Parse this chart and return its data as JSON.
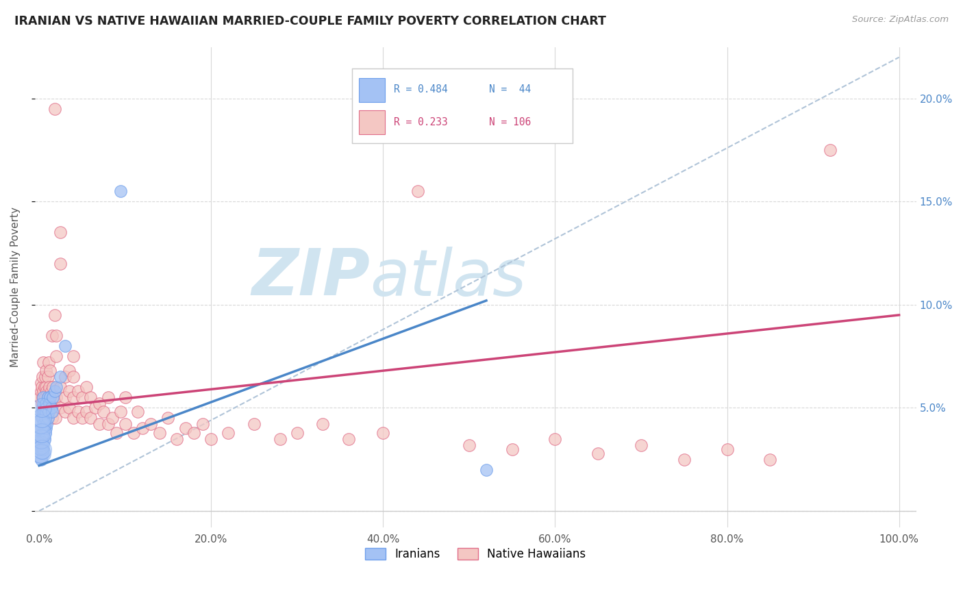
{
  "title": "IRANIAN VS NATIVE HAWAIIAN MARRIED-COUPLE FAMILY POVERTY CORRELATION CHART",
  "source": "Source: ZipAtlas.com",
  "ylabel": "Married-Couple Family Poverty",
  "xlim": [
    -0.005,
    1.02
  ],
  "ylim": [
    -0.008,
    0.225
  ],
  "xticks": [
    0.0,
    0.2,
    0.4,
    0.6,
    0.8,
    1.0
  ],
  "xticklabels": [
    "0.0%",
    "20.0%",
    "40.0%",
    "60.0%",
    "80.0%",
    "100.0%"
  ],
  "yticks": [
    0.0,
    0.05,
    0.1,
    0.15,
    0.2
  ],
  "yticklabels_right": [
    "",
    "5.0%",
    "10.0%",
    "15.0%",
    "20.0%"
  ],
  "legend_r1": "R = 0.484",
  "legend_n1": "N =  44",
  "legend_r2": "R = 0.233",
  "legend_n2": "N = 106",
  "color_iranian": "#a4c2f4",
  "color_hawaiian": "#f4c7c3",
  "color_iranian_edge": "#6d9eeb",
  "color_hawaiian_edge": "#e06c88",
  "color_iranian_line": "#4a86c8",
  "color_hawaiian_line": "#cc4477",
  "watermark_color": "#d0e4f0",
  "ir_line_x0": 0.0,
  "ir_line_y0": 0.022,
  "ir_line_x1": 0.52,
  "ir_line_y1": 0.102,
  "hw_line_x0": 0.0,
  "hw_line_y0": 0.05,
  "hw_line_x1": 1.0,
  "hw_line_y1": 0.095,
  "ref_line_x0": 0.0,
  "ref_line_y0": 0.0,
  "ref_line_x1": 1.0,
  "ref_line_y1": 0.22,
  "iranian_data": [
    [
      0.001,
      0.03
    ],
    [
      0.001,
      0.035
    ],
    [
      0.002,
      0.025
    ],
    [
      0.002,
      0.032
    ],
    [
      0.003,
      0.03
    ],
    [
      0.003,
      0.038
    ],
    [
      0.003,
      0.045
    ],
    [
      0.003,
      0.048
    ],
    [
      0.004,
      0.028
    ],
    [
      0.004,
      0.035
    ],
    [
      0.004,
      0.04
    ],
    [
      0.004,
      0.045
    ],
    [
      0.004,
      0.05
    ],
    [
      0.005,
      0.03
    ],
    [
      0.005,
      0.038
    ],
    [
      0.005,
      0.042
    ],
    [
      0.005,
      0.048
    ],
    [
      0.005,
      0.052
    ],
    [
      0.005,
      0.055
    ],
    [
      0.006,
      0.035
    ],
    [
      0.006,
      0.04
    ],
    [
      0.006,
      0.048
    ],
    [
      0.007,
      0.038
    ],
    [
      0.007,
      0.045
    ],
    [
      0.007,
      0.05
    ],
    [
      0.008,
      0.04
    ],
    [
      0.008,
      0.048
    ],
    [
      0.008,
      0.052
    ],
    [
      0.009,
      0.042
    ],
    [
      0.009,
      0.05
    ],
    [
      0.01,
      0.045
    ],
    [
      0.01,
      0.055
    ],
    [
      0.011,
      0.048
    ],
    [
      0.012,
      0.052
    ],
    [
      0.013,
      0.055
    ],
    [
      0.014,
      0.05
    ],
    [
      0.015,
      0.048
    ],
    [
      0.016,
      0.055
    ],
    [
      0.018,
      0.058
    ],
    [
      0.02,
      0.06
    ],
    [
      0.025,
      0.065
    ],
    [
      0.03,
      0.08
    ],
    [
      0.095,
      0.155
    ],
    [
      0.52,
      0.02
    ]
  ],
  "hawaiian_data": [
    [
      0.001,
      0.055
    ],
    [
      0.002,
      0.058
    ],
    [
      0.002,
      0.062
    ],
    [
      0.003,
      0.052
    ],
    [
      0.003,
      0.06
    ],
    [
      0.004,
      0.048
    ],
    [
      0.004,
      0.055
    ],
    [
      0.004,
      0.065
    ],
    [
      0.005,
      0.05
    ],
    [
      0.005,
      0.058
    ],
    [
      0.005,
      0.072
    ],
    [
      0.006,
      0.052
    ],
    [
      0.006,
      0.06
    ],
    [
      0.007,
      0.048
    ],
    [
      0.007,
      0.055
    ],
    [
      0.007,
      0.065
    ],
    [
      0.008,
      0.052
    ],
    [
      0.008,
      0.06
    ],
    [
      0.008,
      0.068
    ],
    [
      0.009,
      0.05
    ],
    [
      0.009,
      0.058
    ],
    [
      0.01,
      0.045
    ],
    [
      0.01,
      0.055
    ],
    [
      0.01,
      0.065
    ],
    [
      0.011,
      0.048
    ],
    [
      0.011,
      0.058
    ],
    [
      0.011,
      0.072
    ],
    [
      0.012,
      0.052
    ],
    [
      0.012,
      0.06
    ],
    [
      0.013,
      0.055
    ],
    [
      0.013,
      0.068
    ],
    [
      0.014,
      0.05
    ],
    [
      0.014,
      0.058
    ],
    [
      0.015,
      0.045
    ],
    [
      0.015,
      0.055
    ],
    [
      0.015,
      0.085
    ],
    [
      0.016,
      0.048
    ],
    [
      0.016,
      0.06
    ],
    [
      0.017,
      0.052
    ],
    [
      0.018,
      0.095
    ],
    [
      0.018,
      0.195
    ],
    [
      0.019,
      0.045
    ],
    [
      0.02,
      0.055
    ],
    [
      0.02,
      0.075
    ],
    [
      0.02,
      0.085
    ],
    [
      0.025,
      0.05
    ],
    [
      0.025,
      0.06
    ],
    [
      0.025,
      0.12
    ],
    [
      0.025,
      0.135
    ],
    [
      0.03,
      0.048
    ],
    [
      0.03,
      0.055
    ],
    [
      0.03,
      0.065
    ],
    [
      0.035,
      0.05
    ],
    [
      0.035,
      0.058
    ],
    [
      0.035,
      0.068
    ],
    [
      0.04,
      0.045
    ],
    [
      0.04,
      0.055
    ],
    [
      0.04,
      0.065
    ],
    [
      0.04,
      0.075
    ],
    [
      0.045,
      0.048
    ],
    [
      0.045,
      0.058
    ],
    [
      0.05,
      0.045
    ],
    [
      0.05,
      0.055
    ],
    [
      0.055,
      0.048
    ],
    [
      0.055,
      0.06
    ],
    [
      0.06,
      0.045
    ],
    [
      0.06,
      0.055
    ],
    [
      0.065,
      0.05
    ],
    [
      0.07,
      0.042
    ],
    [
      0.07,
      0.052
    ],
    [
      0.075,
      0.048
    ],
    [
      0.08,
      0.042
    ],
    [
      0.08,
      0.055
    ],
    [
      0.085,
      0.045
    ],
    [
      0.09,
      0.038
    ],
    [
      0.095,
      0.048
    ],
    [
      0.1,
      0.042
    ],
    [
      0.1,
      0.055
    ],
    [
      0.11,
      0.038
    ],
    [
      0.115,
      0.048
    ],
    [
      0.12,
      0.04
    ],
    [
      0.13,
      0.042
    ],
    [
      0.14,
      0.038
    ],
    [
      0.15,
      0.045
    ],
    [
      0.16,
      0.035
    ],
    [
      0.17,
      0.04
    ],
    [
      0.18,
      0.038
    ],
    [
      0.19,
      0.042
    ],
    [
      0.2,
      0.035
    ],
    [
      0.22,
      0.038
    ],
    [
      0.25,
      0.042
    ],
    [
      0.28,
      0.035
    ],
    [
      0.3,
      0.038
    ],
    [
      0.33,
      0.042
    ],
    [
      0.36,
      0.035
    ],
    [
      0.4,
      0.038
    ],
    [
      0.44,
      0.155
    ],
    [
      0.5,
      0.032
    ],
    [
      0.55,
      0.03
    ],
    [
      0.6,
      0.035
    ],
    [
      0.65,
      0.028
    ],
    [
      0.7,
      0.032
    ],
    [
      0.75,
      0.025
    ],
    [
      0.8,
      0.03
    ],
    [
      0.85,
      0.025
    ],
    [
      0.92,
      0.175
    ]
  ],
  "big_cluster_iranians": [
    [
      0.001,
      0.028
    ],
    [
      0.001,
      0.032
    ],
    [
      0.001,
      0.038
    ],
    [
      0.001,
      0.042
    ],
    [
      0.002,
      0.028
    ],
    [
      0.002,
      0.035
    ],
    [
      0.002,
      0.042
    ],
    [
      0.003,
      0.03
    ],
    [
      0.003,
      0.038
    ],
    [
      0.003,
      0.045
    ],
    [
      0.003,
      0.05
    ]
  ]
}
